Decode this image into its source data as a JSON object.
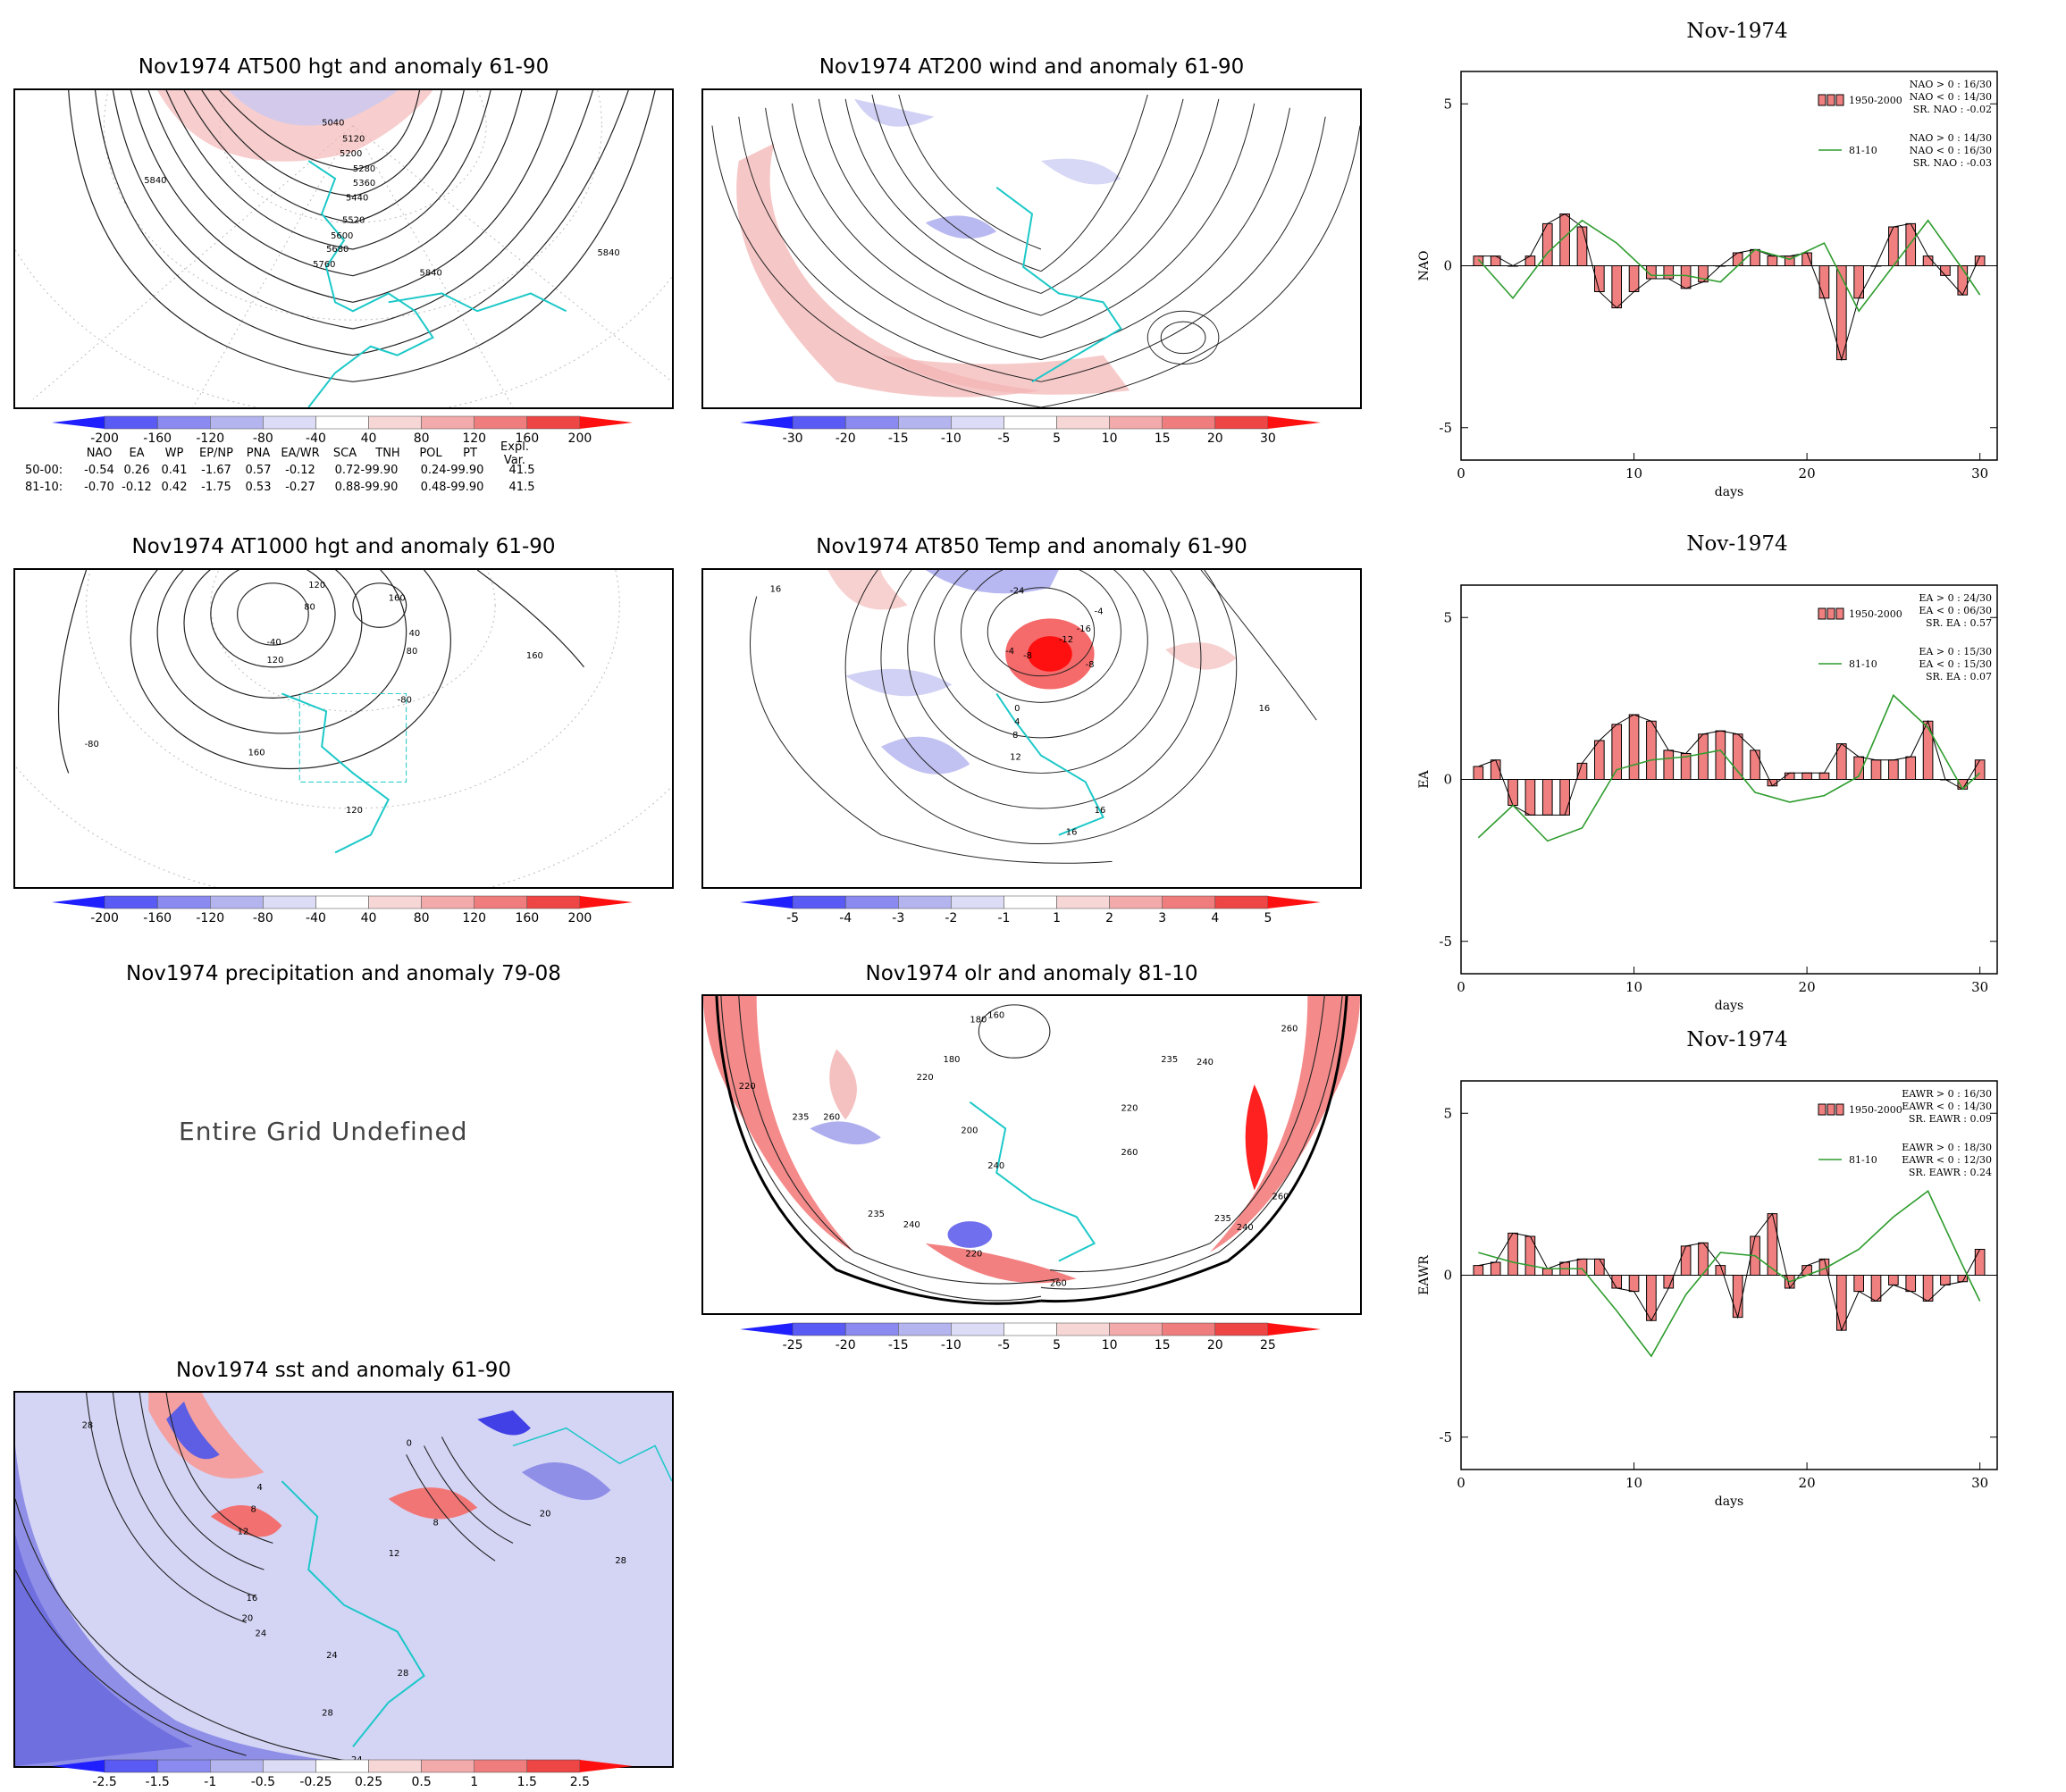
{
  "maps": {
    "z500": {
      "title": "Nov1974 AT500 hgt and anomaly 61-90",
      "contour_labels": [
        "5040",
        "5120",
        "5200",
        "5280",
        "5360",
        "5440",
        "5520",
        "5600",
        "5680",
        "5760",
        "5840",
        "5840",
        "5840"
      ]
    },
    "u200": {
      "title": "Nov1974 AT200 wind and anomaly 61-90"
    },
    "z1000": {
      "title": "Nov1974 AT1000 hgt and anomaly 61-90",
      "contour_labels": [
        "120",
        "160",
        "80",
        "-40",
        "40",
        "80",
        "120",
        "160",
        "160",
        "-80",
        "120",
        "-80"
      ]
    },
    "t850": {
      "title": "Nov1974 AT850 Temp and anomaly 61-90",
      "contour_labels": [
        "16",
        "-24",
        "-4",
        "-16",
        "-8",
        "-12",
        "-8",
        "-4",
        "0",
        "4",
        "8",
        "12",
        "16",
        "16",
        "16"
      ]
    },
    "precip": {
      "title": "Nov1974 precipitation and anomaly 79-08",
      "message": "Entire Grid Undefined"
    },
    "olr": {
      "title": "Nov1974 olr and anomaly 81-10",
      "contour_labels": [
        "180",
        "160",
        "180",
        "220",
        "235",
        "240",
        "260",
        "200",
        "220",
        "240",
        "260",
        "235",
        "260",
        "235",
        "240",
        "220",
        "260",
        "235",
        "240",
        "220",
        "260"
      ]
    },
    "sst": {
      "title": "Nov1974 sst and anomaly 61-90",
      "contour_labels": [
        "28",
        "4",
        "8",
        "12",
        "16",
        "20",
        "24",
        "0",
        "8",
        "20",
        "24",
        "28",
        "28",
        "28",
        "24",
        "12"
      ]
    }
  },
  "colorbars": {
    "z": [
      "-200",
      "-160",
      "-120",
      "-80",
      "-40",
      "40",
      "80",
      "120",
      "160",
      "200"
    ],
    "wind": [
      "-30",
      "-20",
      "-15",
      "-10",
      "-5",
      "5",
      "10",
      "15",
      "20",
      "30"
    ],
    "temp": [
      "-5",
      "-4",
      "-3",
      "-2",
      "-1",
      "1",
      "2",
      "3",
      "4",
      "5"
    ],
    "olr": [
      "-25",
      "-20",
      "-15",
      "-10",
      "-5",
      "5",
      "10",
      "15",
      "20",
      "25"
    ],
    "sst": [
      "-2.5",
      "-1.5",
      "-1",
      "-0.5",
      "-0.25",
      "0.25",
      "0.5",
      "1",
      "1.5",
      "2.5"
    ],
    "colors": [
      "#1f1fff",
      "#5a5af5",
      "#8a8af0",
      "#b4b4ee",
      "#dcdcf7",
      "#ffffff",
      "#f7d6d6",
      "#f2aaaa",
      "#ef7d7d",
      "#ee4545",
      "#ff1010"
    ]
  },
  "index_table": {
    "headers": [
      "NAO",
      "EA",
      "WP",
      "EP/NP",
      "PNA",
      "EA/WR",
      "SCA",
      "TNH",
      "POL",
      "PT",
      "Expl. Var."
    ],
    "rows": [
      {
        "label": "50-00:",
        "values": [
          "-0.54",
          "0.26",
          "0.41",
          "-1.67",
          "0.57",
          "-0.12",
          "0.72-99.90",
          "0.24-99.90",
          "41.5"
        ]
      },
      {
        "label": "81-10:",
        "values": [
          "-0.70",
          "-0.12",
          "0.42",
          "-1.75",
          "0.53",
          "-0.27",
          "0.88-99.90",
          "0.48-99.90",
          "41.5"
        ]
      }
    ]
  },
  "chart_data": [
    {
      "type": "bar",
      "title": "Nov-1974",
      "xlabel": "days",
      "ylabel": "NAO",
      "xlim": [
        0,
        31
      ],
      "ylim": [
        -6,
        6
      ],
      "xticks": [
        "0",
        "10",
        "20",
        "30"
      ],
      "yticks": [
        "5",
        "0",
        "-5"
      ],
      "series": [
        {
          "name": "1950-2000",
          "kind": "bar",
          "x": [
            1,
            2,
            3,
            4,
            5,
            6,
            7,
            8,
            9,
            10,
            11,
            12,
            13,
            14,
            15,
            16,
            17,
            18,
            19,
            20,
            21,
            22,
            23,
            24,
            25,
            26,
            27,
            28,
            29,
            30
          ],
          "values": [
            0.3,
            0.3,
            0.0,
            0.3,
            1.3,
            1.6,
            1.2,
            -0.8,
            -1.3,
            -0.8,
            -0.4,
            -0.4,
            -0.7,
            -0.5,
            0.0,
            0.4,
            0.5,
            0.3,
            0.3,
            0.4,
            -1.0,
            -2.9,
            -1.0,
            0.0,
            1.2,
            1.3,
            0.3,
            -0.3,
            -0.9,
            0.3
          ]
        },
        {
          "name": "81-10",
          "kind": "line",
          "x": [
            1,
            3,
            5,
            7,
            9,
            11,
            13,
            15,
            17,
            19,
            21,
            23,
            25,
            27,
            29,
            30
          ],
          "values": [
            0.2,
            -1.0,
            0.4,
            1.4,
            0.7,
            -0.3,
            -0.3,
            -0.5,
            0.5,
            0.2,
            0.7,
            -1.4,
            0.0,
            1.4,
            -0.1,
            -0.9
          ]
        }
      ],
      "legend": {
        "entries": [
          "1950-2000",
          "81-10"
        ],
        "stats_1": [
          "NAO > 0 : 16/30",
          "NAO < 0 : 14/30",
          "SR. NAO : -0.02"
        ],
        "stats_2": [
          "NAO > 0 : 14/30",
          "NAO < 0 : 16/30",
          "SR. NAO : -0.03"
        ],
        "position": "top-right"
      }
    },
    {
      "type": "bar",
      "title": "Nov-1974",
      "xlabel": "days",
      "ylabel": "EA",
      "xlim": [
        0,
        31
      ],
      "ylim": [
        -6,
        6
      ],
      "xticks": [
        "0",
        "10",
        "20",
        "30"
      ],
      "yticks": [
        "5",
        "0",
        "-5"
      ],
      "series": [
        {
          "name": "1950-2000",
          "kind": "bar",
          "x": [
            1,
            2,
            3,
            4,
            5,
            6,
            7,
            8,
            9,
            10,
            11,
            12,
            13,
            14,
            15,
            16,
            17,
            18,
            19,
            20,
            21,
            22,
            23,
            24,
            25,
            26,
            27,
            28,
            29,
            30
          ],
          "values": [
            0.4,
            0.6,
            -0.8,
            -1.1,
            -1.1,
            -1.1,
            0.5,
            1.2,
            1.7,
            2.0,
            1.8,
            0.9,
            0.8,
            1.4,
            1.5,
            1.4,
            0.9,
            -0.2,
            0.2,
            0.2,
            0.2,
            1.1,
            0.7,
            0.6,
            0.6,
            0.7,
            1.8,
            0.0,
            -0.3,
            0.6
          ]
        },
        {
          "name": "81-10",
          "kind": "line",
          "x": [
            1,
            3,
            5,
            7,
            9,
            11,
            13,
            15,
            17,
            19,
            21,
            23,
            25,
            27,
            29,
            30
          ],
          "values": [
            -1.8,
            -0.8,
            -1.9,
            -1.5,
            0.3,
            0.6,
            0.7,
            0.9,
            -0.4,
            -0.7,
            -0.5,
            0.1,
            2.6,
            1.6,
            -0.3,
            0.2
          ]
        }
      ],
      "legend": {
        "entries": [
          "1950-2000",
          "81-10"
        ],
        "stats_1": [
          "EA > 0 : 24/30",
          "EA < 0 : 06/30",
          "SR. EA : 0.57"
        ],
        "stats_2": [
          "EA > 0 : 15/30",
          "EA < 0 : 15/30",
          "SR. EA : 0.07"
        ],
        "position": "top-right"
      }
    },
    {
      "type": "bar",
      "title": "Nov-1974",
      "xlabel": "days",
      "ylabel": "EAWR",
      "xlim": [
        0,
        31
      ],
      "ylim": [
        -6,
        6
      ],
      "xticks": [
        "0",
        "10",
        "20",
        "30"
      ],
      "yticks": [
        "5",
        "0",
        "-5"
      ],
      "series": [
        {
          "name": "1950-2000",
          "kind": "bar",
          "x": [
            1,
            2,
            3,
            4,
            5,
            6,
            7,
            8,
            9,
            10,
            11,
            12,
            13,
            14,
            15,
            16,
            17,
            18,
            19,
            20,
            21,
            22,
            23,
            24,
            25,
            26,
            27,
            28,
            29,
            30
          ],
          "values": [
            0.3,
            0.4,
            1.3,
            1.2,
            0.2,
            0.4,
            0.5,
            0.5,
            -0.4,
            -0.5,
            -1.4,
            -0.4,
            0.9,
            1.0,
            0.3,
            -1.3,
            1.2,
            1.9,
            -0.4,
            0.3,
            0.5,
            -1.7,
            -0.5,
            -0.8,
            -0.3,
            -0.5,
            -0.8,
            -0.3,
            -0.2,
            0.8
          ]
        },
        {
          "name": "81-10",
          "kind": "line",
          "x": [
            1,
            3,
            5,
            7,
            9,
            11,
            13,
            15,
            17,
            19,
            21,
            23,
            25,
            27,
            29,
            30
          ],
          "values": [
            0.7,
            0.4,
            0.2,
            0.2,
            -1.1,
            -2.5,
            -0.6,
            0.7,
            0.6,
            -0.2,
            0.2,
            0.8,
            1.8,
            2.6,
            0.3,
            -0.8
          ]
        }
      ],
      "legend": {
        "entries": [
          "1950-2000",
          "81-10"
        ],
        "stats_1": [
          "EAWR > 0 : 16/30",
          "EAWR < 0 : 14/30",
          "SR. EAWR : 0.09"
        ],
        "stats_2": [
          "EAWR > 0 : 18/30",
          "EAWR < 0 : 12/30",
          "SR. EAWR : 0.24"
        ],
        "position": "top-right"
      }
    }
  ]
}
